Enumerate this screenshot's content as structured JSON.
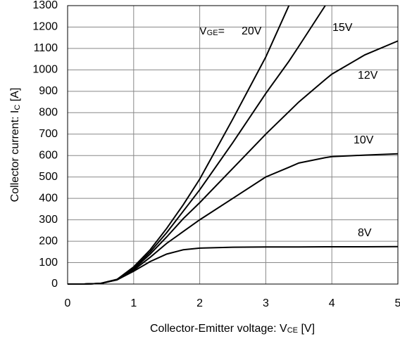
{
  "chart_data": {
    "type": "line",
    "y_label": [
      "Collector current: I",
      "C",
      " [A]"
    ],
    "x_label": [
      "Collector-Emitter voltage: V",
      "CE",
      " [V]"
    ],
    "legend_prefix": [
      "V",
      "GE",
      "="
    ],
    "x": [
      0,
      0.25,
      0.5,
      0.75,
      1,
      1.25,
      1.5,
      1.75,
      2,
      2.5,
      3,
      3.35,
      3.5,
      3.9,
      4,
      4.5,
      5
    ],
    "series": [
      {
        "name": "20V",
        "color": "#000000",
        "values": [
          0,
          0,
          3,
          22,
          80,
          160,
          260,
          370,
          490,
          770,
          1060,
          1300,
          null,
          null,
          null,
          null,
          null
        ]
      },
      {
        "name": "15V",
        "color": "#000000",
        "values": [
          0,
          0,
          3,
          22,
          75,
          150,
          240,
          340,
          440,
          660,
          890,
          1040,
          1110,
          1300,
          null,
          null,
          null
        ]
      },
      {
        "name": "12V",
        "color": "#000000",
        "values": [
          0,
          0,
          3,
          20,
          70,
          140,
          220,
          305,
          380,
          540,
          700,
          805,
          850,
          955,
          980,
          1070,
          1135
        ]
      },
      {
        "name": "10V",
        "color": "#000000",
        "values": [
          0,
          0,
          3,
          20,
          65,
          125,
          190,
          245,
          300,
          400,
          500,
          545,
          565,
          590,
          595,
          602,
          608
        ]
      },
      {
        "name": "8V",
        "color": "#000000",
        "values": [
          0,
          0,
          3,
          20,
          60,
          105,
          140,
          160,
          168,
          172,
          173,
          173,
          173,
          174,
          174,
          174,
          175
        ]
      }
    ],
    "xlim": [
      0,
      5
    ],
    "ylim": [
      0,
      1300
    ],
    "xticks": [
      0,
      1,
      2,
      3,
      4,
      5
    ],
    "yticks": [
      0,
      100,
      200,
      300,
      400,
      500,
      600,
      700,
      800,
      900,
      1000,
      1100,
      1200,
      1300
    ],
    "grid": true
  }
}
